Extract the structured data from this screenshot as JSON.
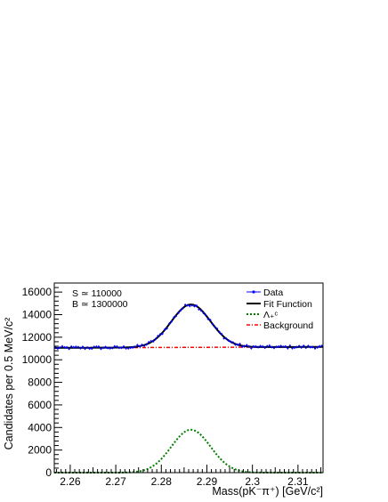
{
  "chart_data": {
    "type": "line",
    "xlabel": "Mass(pK⁻π⁺) [GeV/c²]",
    "ylabel": "Candidates per 0.5 MeV/c²",
    "xlim": [
      2.2565,
      2.3155
    ],
    "ylim": [
      0,
      16800
    ],
    "x_ticks": [
      "2.26",
      "2.27",
      "2.28",
      "2.29",
      "2.3",
      "2.31"
    ],
    "x_tick_values": [
      2.26,
      2.27,
      2.28,
      2.29,
      2.3,
      2.31
    ],
    "y_ticks": [
      "0",
      "2000",
      "4000",
      "6000",
      "8000",
      "10000",
      "12000",
      "14000",
      "16000"
    ],
    "y_tick_values": [
      0,
      2000,
      4000,
      6000,
      8000,
      10000,
      12000,
      14000,
      16000
    ],
    "annotations": [
      "S ≃   110000",
      "B ≃ 1300000"
    ],
    "legend_position": "top-right",
    "model": {
      "signal_mean": 2.2865,
      "signal_sigma": 0.0043,
      "signal_peak": 3800,
      "background_level": 11100
    },
    "series": [
      {
        "name": "Data",
        "color": "#0000ff",
        "style": "points with error bars"
      },
      {
        "name": "Fit Function",
        "color": "#000000",
        "style": "solid"
      },
      {
        "name": "Λ₊ᶜ",
        "color": "#008000",
        "style": "dotted"
      },
      {
        "name": "Background",
        "color": "#ff0000",
        "style": "dash-dot"
      }
    ]
  }
}
